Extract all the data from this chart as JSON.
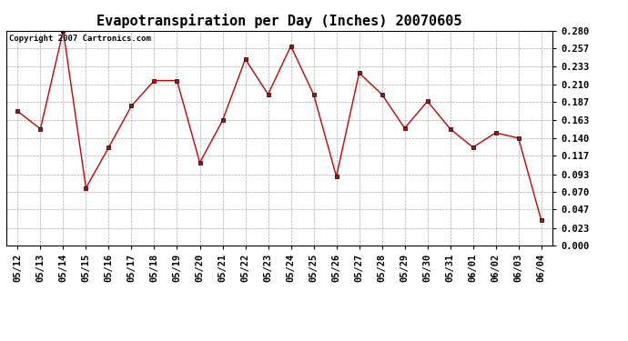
{
  "title": "Evapotranspiration per Day (Inches) 20070605",
  "copyright": "Copyright 2007 Cartronics.com",
  "x_labels": [
    "05/12",
    "05/13",
    "05/14",
    "05/15",
    "05/16",
    "05/17",
    "05/18",
    "05/19",
    "05/20",
    "05/21",
    "05/22",
    "05/23",
    "05/24",
    "05/25",
    "05/26",
    "05/27",
    "05/28",
    "05/29",
    "05/30",
    "05/31",
    "06/01",
    "06/02",
    "06/03",
    "06/04"
  ],
  "y_values": [
    0.175,
    0.152,
    0.28,
    0.075,
    0.128,
    0.182,
    0.215,
    0.215,
    0.108,
    0.163,
    0.243,
    0.197,
    0.26,
    0.197,
    0.09,
    0.225,
    0.197,
    0.153,
    0.188,
    0.152,
    0.128,
    0.147,
    0.14,
    0.033
  ],
  "line_color": "#cc0000",
  "marker": "s",
  "marker_size": 2.5,
  "ylim": [
    0.0,
    0.28
  ],
  "yticks": [
    0.0,
    0.023,
    0.047,
    0.07,
    0.093,
    0.117,
    0.14,
    0.163,
    0.187,
    0.21,
    0.233,
    0.257,
    0.28
  ],
  "bg_color": "#ffffff",
  "grid_color": "#aaaaaa",
  "title_fontsize": 11,
  "copyright_fontsize": 6.5,
  "tick_fontsize": 7.5
}
